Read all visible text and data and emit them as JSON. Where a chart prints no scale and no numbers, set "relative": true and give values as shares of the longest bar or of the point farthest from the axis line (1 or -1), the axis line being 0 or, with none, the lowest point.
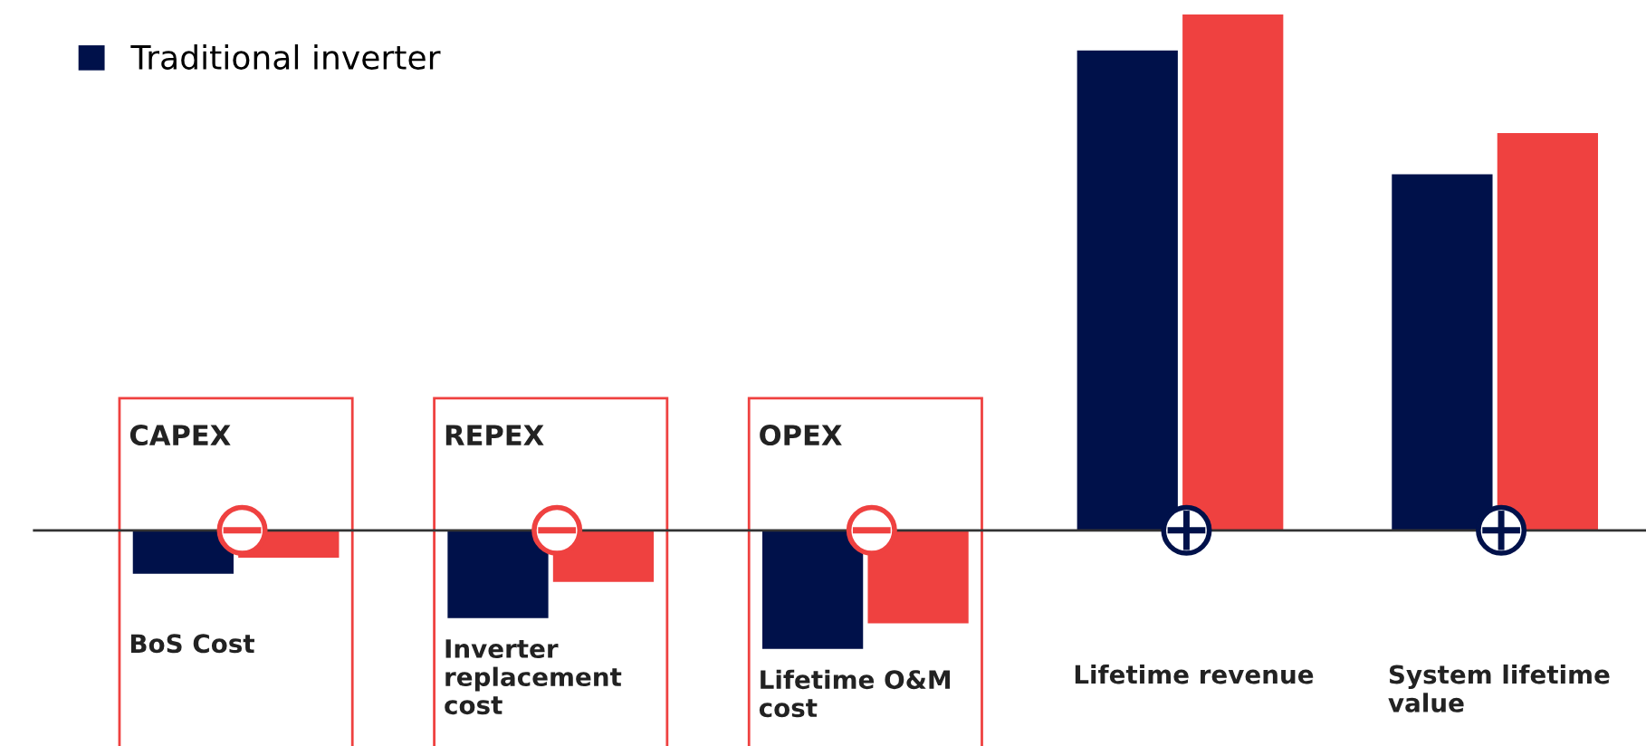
{
  "chart_data": {
    "type": "bar",
    "relative": true,
    "categories": [
      "BoS Cost",
      "Inverter replacement cost",
      "Lifetime O&M cost",
      "Lifetime revenue",
      "System lifetime value"
    ],
    "series": [
      {
        "name": "Traditional inverter",
        "color": "#00114a",
        "values": [
          -0.084,
          -0.17,
          -0.23,
          0.93,
          0.69
        ]
      },
      {
        "color": "#ef4140",
        "values": [
          -0.053,
          -0.1,
          -0.18,
          1.0,
          0.77
        ]
      }
    ],
    "annotations": [
      "CAPEX",
      "REPEX",
      "OPEX"
    ],
    "legend": "top left"
  }
}
